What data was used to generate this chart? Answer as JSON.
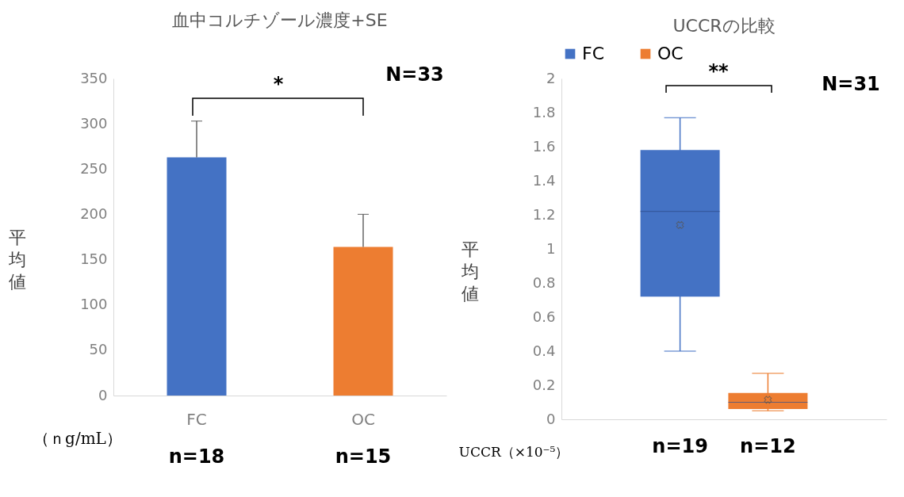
{
  "chart_data": [
    {
      "type": "bar",
      "title": "血中コルチゾール濃度+SE",
      "ylabel": "平均値",
      "categories": [
        "FC",
        "OC"
      ],
      "values": [
        263,
        164
      ],
      "colors": [
        "#4472c4",
        "#ed7d31"
      ],
      "errors": [
        [
          263,
          303
        ],
        [
          164,
          200
        ]
      ],
      "ylim": [
        0,
        350
      ],
      "yticks": [
        0,
        50,
        100,
        150,
        200,
        250,
        300,
        350
      ],
      "grid": false,
      "annotations": [
        "*",
        "N=33",
        "（ｎg/mL）",
        "n=18",
        "n=15"
      ]
    },
    {
      "type": "box",
      "title": "UCCRの比較",
      "ylabel": "平均値",
      "categories": [
        "n=19",
        "n=12"
      ],
      "series": [
        {
          "name": "FC",
          "color": "#4472c4",
          "boxes": [
            {
              "low": 0.4,
              "q1": 0.72,
              "median": 1.22,
              "q3": 1.58,
              "high": 1.77,
              "mean": 1.14
            },
            null
          ]
        },
        {
          "name": "OC",
          "color": "#ed7d31",
          "boxes": [
            null,
            {
              "low": 0.05,
              "q1": 0.06,
              "median": 0.1,
              "q3": 0.155,
              "high": 0.27,
              "mean": 0.115
            }
          ]
        }
      ],
      "ylim": [
        0,
        2
      ],
      "yticks": [
        0,
        0.2,
        0.4,
        0.6,
        0.8,
        1,
        1.2,
        1.4,
        1.6,
        1.8,
        2
      ],
      "grid": false,
      "legend": "top",
      "annotations": [
        "**",
        "N=31",
        "UCCR（×10⁻⁵）"
      ]
    }
  ]
}
